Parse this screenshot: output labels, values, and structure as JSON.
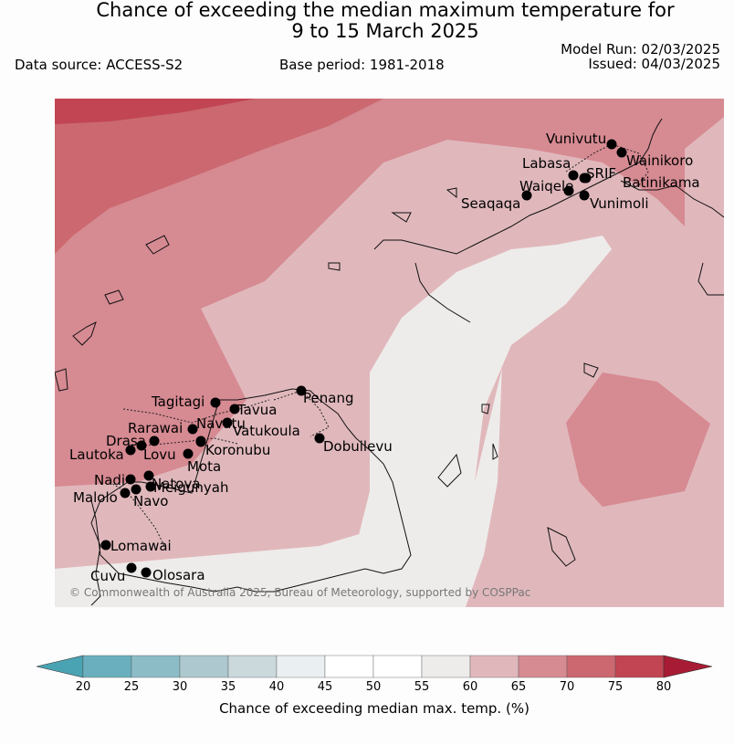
{
  "header": {
    "title_line1": "Chance of exceeding the median maximum temperature for",
    "title_line2": "9 to 15 March 2025",
    "data_source": "Data source: ACCESS-S2",
    "base_period": "Base period: 1981-2018",
    "model_run": "Model Run: 02/03/2025",
    "issued": "Issued: 04/03/2025"
  },
  "map": {
    "copyright": "© Commonwealth of Australia 2025, Bureau of Meteorology, supported by COSPPac",
    "places": [
      "Vunivutu",
      "Wainikoro",
      "Labasa",
      "Waiqele",
      "SRIF",
      "Batinikama",
      "Seaqaqa",
      "Vunimoli",
      "Penang",
      "Tagitagi",
      "Tavua",
      "Vatukoula",
      "Rarawai",
      "Navatu",
      "Drasa",
      "Koronubu",
      "Lautoka",
      "Lovu",
      "Mota",
      "Dobuilevu",
      "Nadi",
      "Natova",
      "Meigunyah",
      "Malolo",
      "Navo",
      "Lomawai",
      "Cuvu",
      "Olosara"
    ]
  },
  "colorbar": {
    "title": "Chance of exceeding median max. temp. (%)",
    "ticks": [
      "20",
      "25",
      "30",
      "35",
      "40",
      "45",
      "50",
      "55",
      "60",
      "65",
      "70",
      "75",
      "80"
    ],
    "colors": [
      "#4aa3b2",
      "#6aafbd",
      "#8cbcc6",
      "#adc9cf",
      "#cbd8dc",
      "#eaeff1",
      "#ffffff",
      "#ffffff",
      "#eeecea",
      "#e0b8bc",
      "#d68a92",
      "#cb6870",
      "#c14553",
      "#a81b34"
    ]
  }
}
